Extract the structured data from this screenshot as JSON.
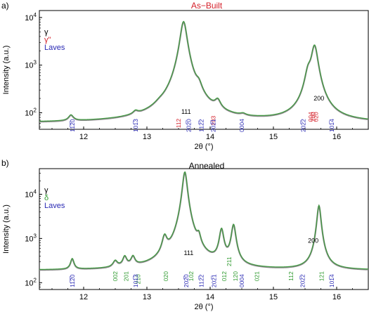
{
  "chart_data": [
    {
      "type": "line",
      "panel_label": "a)",
      "title": "As−Built",
      "xlabel": "2θ (°)",
      "ylabel": "Intensity (a.u.)",
      "y_scale": "log",
      "xlim": [
        11.3,
        16.5
      ],
      "ylim": [
        45,
        14000
      ],
      "x_ticks": [
        "12",
        "13",
        "14",
        "15",
        "16"
      ],
      "y_ticks": [
        {
          "value": 100,
          "base": "10",
          "exp": "2"
        },
        {
          "value": 1000,
          "base": "10",
          "exp": "3"
        },
        {
          "value": 10000,
          "base": "10",
          "exp": "4"
        }
      ],
      "legend": [
        {
          "label": "γ",
          "color": "#000000"
        },
        {
          "label": "γ\"",
          "color": "#d4202a"
        },
        {
          "label": "Laves",
          "color": "#2a2ab4"
        }
      ],
      "baseline": 62,
      "peaks": [
        {
          "x": 11.8,
          "height": 22,
          "width": 0.045
        },
        {
          "x": 12.82,
          "height": 16,
          "width": 0.045
        },
        {
          "x": 13.2,
          "height": 12,
          "width": 0.08
        },
        {
          "x": 13.58,
          "height": 8200,
          "width": 0.05
        },
        {
          "x": 13.82,
          "height": 140,
          "width": 0.05
        },
        {
          "x": 14.12,
          "height": 65,
          "width": 0.05
        },
        {
          "x": 14.52,
          "height": 8,
          "width": 0.05
        },
        {
          "x": 15.55,
          "height": 500,
          "width": 0.05
        },
        {
          "x": 15.65,
          "height": 2500,
          "width": 0.05
        }
      ],
      "annotations": [
        {
          "text": "111",
          "x": 13.62,
          "y": 95,
          "color": "#000000",
          "vertical": false
        },
        {
          "text": "200",
          "x": 15.72,
          "y": 180,
          "color": "#000000",
          "vertical": false
        },
        {
          "text": "112",
          "x": 13.5,
          "y": 60,
          "color": "#d4202a",
          "vertical": true
        },
        {
          "text": "103",
          "x": 14.05,
          "y": 68,
          "color": "#d4202a",
          "vertical": true
        },
        {
          "text": "004",
          "x": 15.59,
          "y": 82,
          "color": "#d4202a",
          "vertical": true
        },
        {
          "text": "200",
          "x": 15.63,
          "y": 82,
          "color": "#d4202a",
          "vertical": true
        },
        {
          "text": "020",
          "x": 15.67,
          "y": 82,
          "color": "#d4202a",
          "vertical": true
        },
        {
          "text": "11̅2̅0",
          "x": 11.82,
          "y": 54,
          "color": "#2a2ab4",
          "vertical": true
        },
        {
          "text": "101̅3",
          "x": 12.82,
          "y": 54,
          "color": "#2a2ab4",
          "vertical": true
        },
        {
          "text": "202̅0",
          "x": 13.66,
          "y": 54,
          "color": "#2a2ab4",
          "vertical": true
        },
        {
          "text": "112̅2",
          "x": 13.86,
          "y": 54,
          "color": "#2a2ab4",
          "vertical": true
        },
        {
          "text": "202̅1",
          "x": 14.05,
          "y": 54,
          "color": "#2a2ab4",
          "vertical": true
        },
        {
          "text": "0004",
          "x": 14.5,
          "y": 54,
          "color": "#2a2ab4",
          "vertical": true
        },
        {
          "text": "202̅2",
          "x": 15.47,
          "y": 54,
          "color": "#2a2ab4",
          "vertical": true
        },
        {
          "text": "101̅4",
          "x": 15.92,
          "y": 54,
          "color": "#2a2ab4",
          "vertical": true
        }
      ]
    },
    {
      "type": "line",
      "panel_label": "b)",
      "title": "Annealed",
      "xlabel": "2θ (°)",
      "ylabel": "Intensity (a.u.)",
      "y_scale": "log",
      "xlim": [
        11.3,
        16.5
      ],
      "ylim": [
        70,
        38000
      ],
      "x_ticks": [
        "12",
        "13",
        "14",
        "15",
        "16"
      ],
      "y_ticks": [
        {
          "value": 100,
          "base": "10",
          "exp": "2"
        },
        {
          "value": 1000,
          "base": "10",
          "exp": "3"
        },
        {
          "value": 10000,
          "base": "10",
          "exp": "4"
        }
      ],
      "legend": [
        {
          "label": "γ",
          "color": "#000000"
        },
        {
          "label": "δ",
          "color": "#2e9a2e"
        },
        {
          "label": "Laves",
          "color": "#2a2ab4"
        }
      ],
      "baseline": 190,
      "peaks": [
        {
          "x": 11.82,
          "height": 150,
          "width": 0.03
        },
        {
          "x": 12.5,
          "height": 90,
          "width": 0.04
        },
        {
          "x": 12.65,
          "height": 160,
          "width": 0.035
        },
        {
          "x": 12.78,
          "height": 150,
          "width": 0.035
        },
        {
          "x": 13.28,
          "height": 700,
          "width": 0.04
        },
        {
          "x": 13.6,
          "height": 32000,
          "width": 0.035
        },
        {
          "x": 13.82,
          "height": 520,
          "width": 0.03
        },
        {
          "x": 14.18,
          "height": 1350,
          "width": 0.035
        },
        {
          "x": 14.37,
          "height": 1800,
          "width": 0.035
        },
        {
          "x": 15.72,
          "height": 5400,
          "width": 0.03
        }
      ],
      "annotations": [
        {
          "text": "111",
          "x": 13.66,
          "y": 420,
          "color": "#000000",
          "vertical": false
        },
        {
          "text": "200",
          "x": 15.63,
          "y": 800,
          "color": "#000000",
          "vertical": false
        },
        {
          "text": "002",
          "x": 12.5,
          "y": 140,
          "color": "#2e9a2e",
          "vertical": true
        },
        {
          "text": "201",
          "x": 12.67,
          "y": 140,
          "color": "#2e9a2e",
          "vertical": true
        },
        {
          "text": "210",
          "x": 12.86,
          "y": 120,
          "color": "#2e9a2e",
          "vertical": true
        },
        {
          "text": "020",
          "x": 13.3,
          "y": 140,
          "color": "#2e9a2e",
          "vertical": true
        },
        {
          "text": "102",
          "x": 13.7,
          "y": 140,
          "color": "#2e9a2e",
          "vertical": true
        },
        {
          "text": "012",
          "x": 14.22,
          "y": 140,
          "color": "#2e9a2e",
          "vertical": true
        },
        {
          "text": "211",
          "x": 14.3,
          "y": 300,
          "color": "#2e9a2e",
          "vertical": true
        },
        {
          "text": "120",
          "x": 14.4,
          "y": 140,
          "color": "#2e9a2e",
          "vertical": true
        },
        {
          "text": "021",
          "x": 14.74,
          "y": 140,
          "color": "#2e9a2e",
          "vertical": true
        },
        {
          "text": "112",
          "x": 15.28,
          "y": 140,
          "color": "#2e9a2e",
          "vertical": true
        },
        {
          "text": "121",
          "x": 15.76,
          "y": 140,
          "color": "#2e9a2e",
          "vertical": true
        },
        {
          "text": "11̅2̅0",
          "x": 11.82,
          "y": 110,
          "color": "#2a2ab4",
          "vertical": true
        },
        {
          "text": "101̅3",
          "x": 12.82,
          "y": 110,
          "color": "#2a2ab4",
          "vertical": true
        },
        {
          "text": "202̅0",
          "x": 13.62,
          "y": 110,
          "color": "#2a2ab4",
          "vertical": true
        },
        {
          "text": "112̅2",
          "x": 13.86,
          "y": 110,
          "color": "#2a2ab4",
          "vertical": true
        },
        {
          "text": "202̅1",
          "x": 14.06,
          "y": 110,
          "color": "#2a2ab4",
          "vertical": true
        },
        {
          "text": "0004",
          "x": 14.5,
          "y": 110,
          "color": "#2a2ab4",
          "vertical": true
        },
        {
          "text": "202̅2",
          "x": 15.46,
          "y": 110,
          "color": "#2a2ab4",
          "vertical": true
        },
        {
          "text": "101̅4",
          "x": 15.92,
          "y": 110,
          "color": "#2a2ab4",
          "vertical": true
        }
      ]
    }
  ]
}
